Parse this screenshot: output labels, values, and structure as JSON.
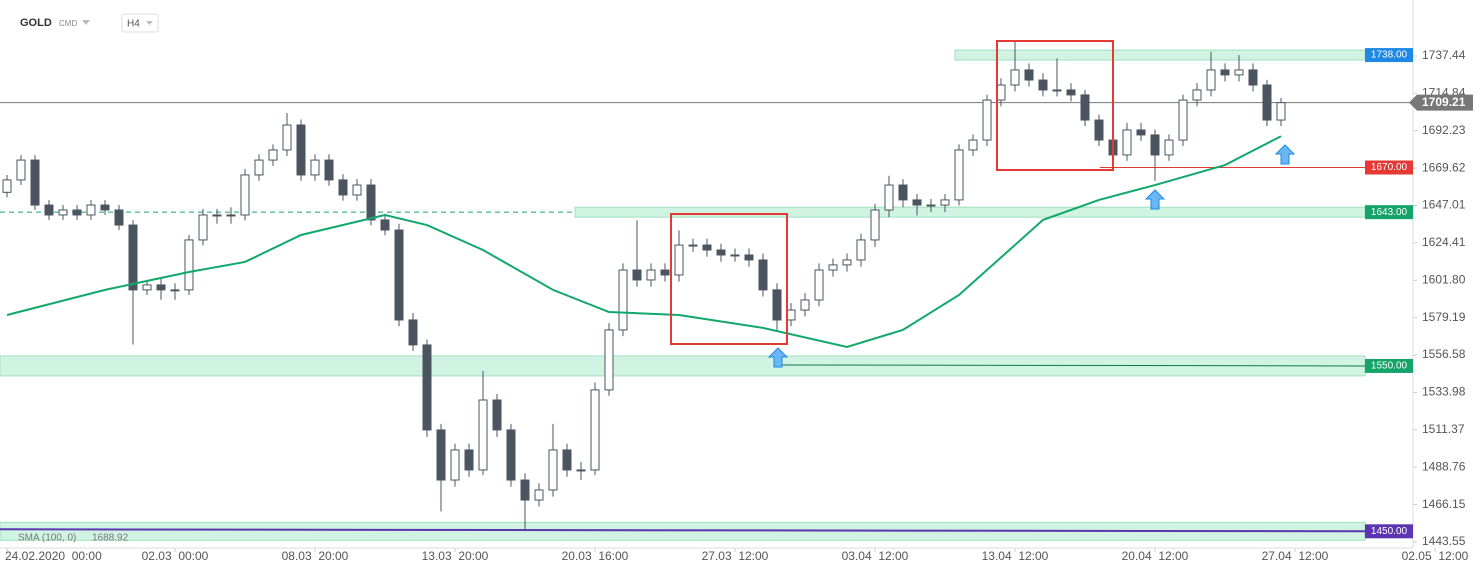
{
  "header": {
    "symbol": "GOLD",
    "market": "CMD",
    "interval": "H4"
  },
  "chart_data": {
    "type": "candlestick",
    "candles": [
      [
        1655,
        1665.5,
        1652,
        1662.5
      ],
      [
        1662.5,
        1677.5,
        1659.5,
        1674.5
      ],
      [
        1674.5,
        1677.5,
        1644.3,
        1647.3
      ],
      [
        1647.3,
        1650.3,
        1638.3,
        1641.3
      ],
      [
        1641.3,
        1647.3,
        1638.3,
        1644.3
      ],
      [
        1644.3,
        1647.3,
        1638.3,
        1641.3
      ],
      [
        1641.3,
        1650.3,
        1638.3,
        1647.3
      ],
      [
        1647.3,
        1650.3,
        1641.3,
        1644.3
      ],
      [
        1644.3,
        1647.3,
        1632.2,
        1635.2
      ],
      [
        1635.2,
        1638.2,
        1563,
        1596.0
      ],
      [
        1596.0,
        1602.0,
        1593.0,
        1599.0
      ],
      [
        1599.0,
        1603,
        1590,
        1596.0
      ],
      [
        1596.0,
        1600,
        1590,
        1596.0
      ],
      [
        1596.0,
        1629.2,
        1593,
        1626.2
      ],
      [
        1626.2,
        1645,
        1623,
        1641.3
      ],
      [
        1641.3,
        1645,
        1636,
        1641.3
      ],
      [
        1641.3,
        1646,
        1636,
        1641.3
      ],
      [
        1641.3,
        1669,
        1638,
        1665.5
      ],
      [
        1665.5,
        1678,
        1662,
        1674.5
      ],
      [
        1674.5,
        1684,
        1671,
        1680.6
      ],
      [
        1680.6,
        1703,
        1677,
        1695.7
      ],
      [
        1695.7,
        1699,
        1662,
        1665.5
      ],
      [
        1665.5,
        1678,
        1662,
        1674.5
      ],
      [
        1674.5,
        1678,
        1659,
        1662.5
      ],
      [
        1662.5,
        1666,
        1650,
        1653.4
      ],
      [
        1653.4,
        1663,
        1650,
        1659.4
      ],
      [
        1659.4,
        1663,
        1635,
        1638.3
      ],
      [
        1638.3,
        1642,
        1629,
        1632.2
      ],
      [
        1632.2,
        1636,
        1574,
        1577.8
      ],
      [
        1577.8,
        1582,
        1559,
        1562.7
      ],
      [
        1562.7,
        1566,
        1507,
        1511.3
      ],
      [
        1511.3,
        1515,
        1462,
        1481.0
      ],
      [
        1481.0,
        1503,
        1477,
        1499.2
      ],
      [
        1499.2,
        1503,
        1483,
        1487.1
      ],
      [
        1487.1,
        1547,
        1484,
        1529.4
      ],
      [
        1529.4,
        1533,
        1507,
        1511.3
      ],
      [
        1511.3,
        1515,
        1477,
        1481.0
      ],
      [
        1481.0,
        1485,
        1450,
        1468.9
      ],
      [
        1468.9,
        1479,
        1465,
        1475.0
      ],
      [
        1475.0,
        1515,
        1471,
        1499.2
      ],
      [
        1499.2,
        1503,
        1483,
        1487.1
      ],
      [
        1487.1,
        1492,
        1481,
        1487.1
      ],
      [
        1487.1,
        1540,
        1484,
        1535.5
      ],
      [
        1535.5,
        1576,
        1532,
        1571.8
      ],
      [
        1571.8,
        1612,
        1568,
        1608.0
      ],
      [
        1608.0,
        1638,
        1598,
        1602.0
      ],
      [
        1602.0,
        1612,
        1598,
        1608.0
      ],
      [
        1608.0,
        1612,
        1601,
        1605.0
      ],
      [
        1605.0,
        1632,
        1601,
        1623.1
      ],
      [
        1623.1,
        1627,
        1619,
        1623.1
      ],
      [
        1623.1,
        1627,
        1616,
        1620.1
      ],
      [
        1620.1,
        1624,
        1613,
        1617.1
      ],
      [
        1617.1,
        1621,
        1613,
        1617.1
      ],
      [
        1617.1,
        1621,
        1610,
        1614.1
      ],
      [
        1614.1,
        1618,
        1592,
        1596.0
      ],
      [
        1596.0,
        1600,
        1571,
        1577.8
      ],
      [
        1577.8,
        1588,
        1574,
        1583.8
      ],
      [
        1583.8,
        1594,
        1580,
        1589.9
      ],
      [
        1589.9,
        1612,
        1586,
        1608.0
      ],
      [
        1608.0,
        1615,
        1604,
        1611.1
      ],
      [
        1611.1,
        1618,
        1607,
        1614.1
      ],
      [
        1614.1,
        1630,
        1610,
        1626.2
      ],
      [
        1626.2,
        1648,
        1622,
        1644.3
      ],
      [
        1644.3,
        1665,
        1640,
        1659.4
      ],
      [
        1659.4,
        1663,
        1646,
        1650.4
      ],
      [
        1650.4,
        1654,
        1641,
        1647.3
      ],
      [
        1647.3,
        1651,
        1643,
        1647.3
      ],
      [
        1647.3,
        1654,
        1643,
        1650.4
      ],
      [
        1650.4,
        1684,
        1647,
        1680.6
      ],
      [
        1680.6,
        1690,
        1677,
        1686.6
      ],
      [
        1686.6,
        1714,
        1683,
        1710.8
      ],
      [
        1710.8,
        1724,
        1707,
        1719.9
      ],
      [
        1719.9,
        1747,
        1716,
        1729.0
      ],
      [
        1729.0,
        1733,
        1719,
        1722.9
      ],
      [
        1722.9,
        1727,
        1713,
        1716.9
      ],
      [
        1716.9,
        1736,
        1713,
        1716.9
      ],
      [
        1716.9,
        1721,
        1710,
        1713.9
      ],
      [
        1713.9,
        1717,
        1695,
        1698.7
      ],
      [
        1698.7,
        1702,
        1683,
        1686.6
      ],
      [
        1686.6,
        1690,
        1671,
        1677.6
      ],
      [
        1677.6,
        1697,
        1674,
        1692.7
      ],
      [
        1692.7,
        1697,
        1686,
        1689.7
      ],
      [
        1689.7,
        1693,
        1662,
        1677.6
      ],
      [
        1677.6,
        1690,
        1674,
        1686.6
      ],
      [
        1686.6,
        1714,
        1683,
        1710.8
      ],
      [
        1710.8,
        1721,
        1707,
        1716.9
      ],
      [
        1716.9,
        1740,
        1713,
        1729.0
      ],
      [
        1729.0,
        1733,
        1722,
        1726.0
      ],
      [
        1726.0,
        1738,
        1722,
        1729.0
      ],
      [
        1729.0,
        1733,
        1716,
        1719.9
      ],
      [
        1719.9,
        1723,
        1695,
        1698.7
      ],
      [
        1698.7,
        1712,
        1695,
        1709.21
      ]
    ],
    "sma": {
      "name": "SMA (100, 0)",
      "color": "#12a86b",
      "x": [
        0,
        7,
        13,
        17,
        21,
        27,
        30,
        34,
        39,
        43,
        48,
        54,
        60,
        64,
        68,
        74,
        78,
        82,
        87,
        91
      ],
      "values": [
        1580.8,
        1596,
        1606.8,
        1612.9,
        1629.2,
        1641.3,
        1635.2,
        1620.1,
        1596,
        1582.6,
        1580.8,
        1573,
        1561.5,
        1571.8,
        1592.9,
        1638.3,
        1650.4,
        1659.4,
        1671.5,
        1688.92
      ]
    },
    "last_price": {
      "value": 1709.21,
      "label": "1709.21"
    },
    "levels": [
      {
        "value": 1738,
        "label": "1738.00",
        "color": "#1e88e5",
        "zone": true
      },
      {
        "value": 1670,
        "label": "1670.00",
        "color": "#e53935",
        "zone": false
      },
      {
        "value": 1643,
        "label": "1643.00",
        "color": "#16a36a",
        "zone": true
      },
      {
        "value": 1550,
        "label": "1550.00",
        "color": "#16a36a",
        "zone": true
      },
      {
        "value": 1450,
        "label": "1450.00",
        "color": "#5e35b1",
        "zone": true
      }
    ],
    "ylim": [
      1439.9,
      1771.3
    ],
    "yticks": [
      1737.44,
      1714.84,
      1692.23,
      1669.62,
      1647.01,
      1624.41,
      {
        "value": 1601.8,
        "label": "1601.80"
      },
      1579.19,
      1556.58,
      1533.98,
      1511.37,
      1488.76,
      1466.15,
      1443.55
    ],
    "xlim": [
      -0.5,
      102.5
    ],
    "xticks": [
      {
        "value": 0,
        "label": "24.02.2020  00:00"
      },
      {
        "value": 12,
        "label": "02.03  00:00"
      },
      {
        "value": 22,
        "label": "08.03  20:00"
      },
      {
        "value": 32,
        "label": "13.03  20:00"
      },
      {
        "value": 42,
        "label": "20.03  16:00"
      },
      {
        "value": 52,
        "label": "27.03  12:00"
      },
      {
        "value": 62,
        "label": "03.04  12:00"
      },
      {
        "value": 72,
        "label": "13.04  12:00"
      },
      {
        "value": 82,
        "label": "20.04  12:00"
      },
      {
        "value": 92,
        "label": "27.04  12:00"
      },
      {
        "value": 102,
        "label": "02.05  12:00"
      }
    ]
  }
}
